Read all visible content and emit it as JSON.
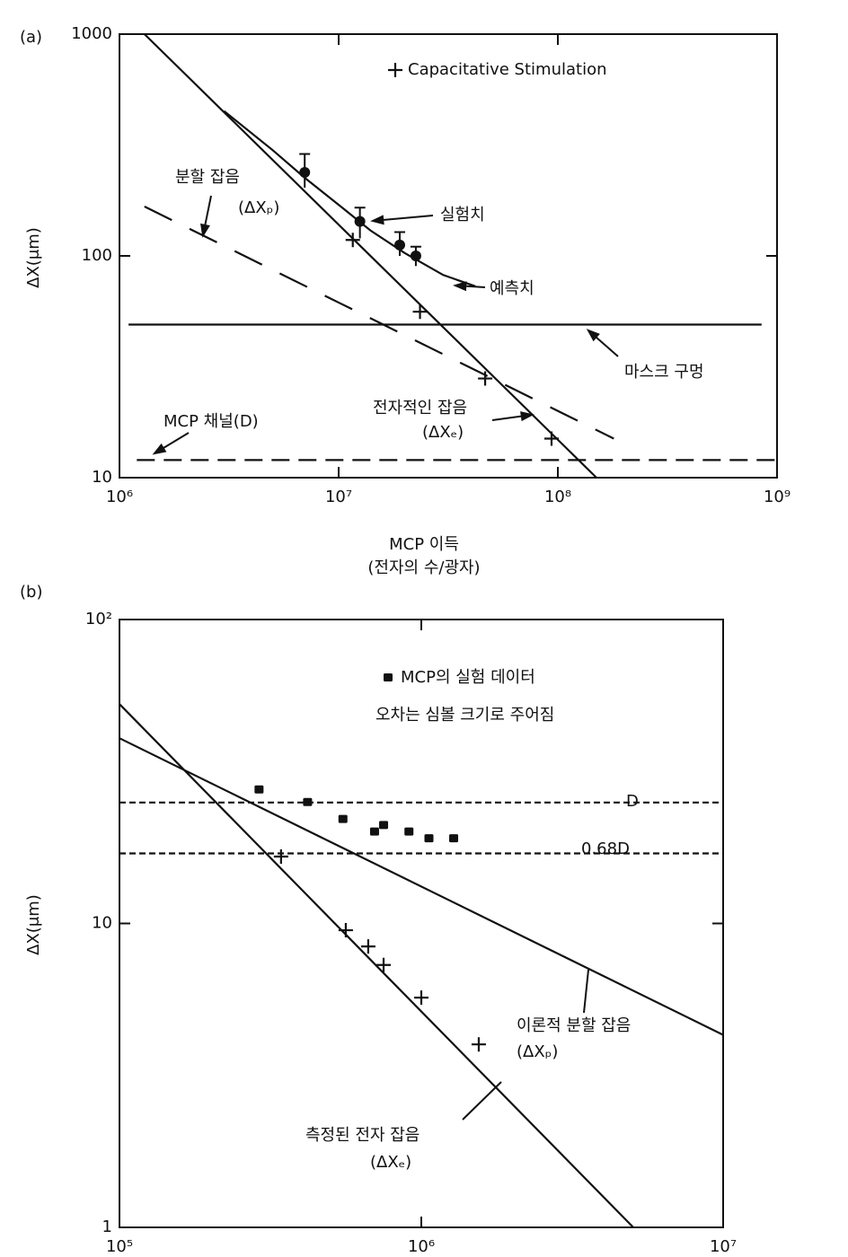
{
  "chart_data": [
    {
      "type": "line",
      "panel": "(a)",
      "xlabel": "MCP 이득",
      "xlabel2": "(전자의 수/광자)",
      "ylabel": "ΔX(μm)",
      "log_x": true,
      "log_y": true,
      "color": "#111",
      "xlim": [
        1000000,
        1000000000
      ],
      "xticks": [
        {
          "value": 1000000,
          "label": "10⁶"
        },
        {
          "value": 10000000,
          "label": "10⁷"
        },
        {
          "value": 100000000,
          "label": "10⁸"
        },
        {
          "value": 1000000000,
          "label": "10⁹"
        }
      ],
      "ylim": [
        10,
        1000
      ],
      "yticks": [
        10,
        100,
        1000
      ],
      "series": [
        {
          "style": "circle",
          "x": [
            7000000,
            12500000,
            19000000,
            22500000
          ],
          "values": [
            238,
            143,
            112,
            100
          ],
          "error_upper": [
            50,
            22,
            16,
            10
          ],
          "error_lower": [
            35,
            23,
            12,
            10
          ]
        },
        {
          "name": "Capacitative Stimulation",
          "style": "cross",
          "x": [
            11600000,
            23500000,
            46600000,
            93600000
          ],
          "values": [
            118,
            56,
            28,
            15
          ]
        },
        {
          "style": "solid",
          "x": [
            1300000,
            150000000
          ],
          "values": [
            1000,
            10
          ]
        },
        {
          "style": "solid",
          "x": [
            3000000,
            5000000,
            7000000,
            10000000,
            14000000,
            20000000,
            30000000,
            42000000
          ],
          "values": [
            450,
            300,
            225,
            170,
            130,
            103,
            82,
            73
          ]
        },
        {
          "style": "long-dashed",
          "x": [
            1300000,
            180000000
          ],
          "values": [
            167,
            15
          ]
        },
        {
          "style": "solid",
          "x": [
            1100000,
            850000000
          ],
          "values": [
            49,
            49
          ]
        },
        {
          "style": "dashed",
          "x": [
            1200000,
            1000000000
          ],
          "values": [
            12,
            12
          ]
        }
      ],
      "annotations": [
        "분할 잡음",
        "(ΔXₚ)",
        "실험치",
        "예측치",
        "마스크 구멍",
        "전자적인 잡음",
        "(ΔXₑ)",
        "MCP 채널(D)"
      ]
    },
    {
      "type": "line",
      "panel": "(b)",
      "ylabel": "ΔX(μm)",
      "log_x": true,
      "log_y": true,
      "color": "#111",
      "xlim": [
        100000,
        10000000
      ],
      "xticks": [
        {
          "value": 100000,
          "label": "10⁵"
        },
        {
          "value": 1000000,
          "label": "10⁶"
        },
        {
          "value": 10000000,
          "label": "10⁷"
        }
      ],
      "ylim": [
        1,
        100
      ],
      "yticks": [
        1,
        10,
        {
          "value": 100,
          "label": "10²"
        }
      ],
      "legend_note": "오차는 심볼 크기로 주어짐",
      "series": [
        {
          "name": "MCP의 실험 데이터",
          "style": "square",
          "x": [
            290000,
            420000,
            550000,
            700000,
            750000,
            910000,
            1060000,
            1280000
          ],
          "values": [
            27.5,
            25,
            22,
            20,
            21,
            20,
            19,
            19
          ]
        },
        {
          "style": "cross",
          "x": [
            343000,
            562000,
            667000,
            750000,
            1000000,
            1550000
          ],
          "values": [
            16.6,
            9.5,
            8.4,
            7.3,
            5.7,
            4
          ]
        },
        {
          "style": "solid",
          "x": [
            100000,
            5040000
          ],
          "values": [
            52.7,
            1
          ]
        },
        {
          "style": "solid",
          "x": [
            100000,
            10000000
          ],
          "values": [
            40.7,
            4.3
          ]
        },
        {
          "style": "short-dashed",
          "x": [
            100000,
            10000000
          ],
          "values": [
            25,
            25
          ]
        },
        {
          "style": "short-dashed",
          "x": [
            100000,
            10000000
          ],
          "values": [
            17,
            17
          ]
        }
      ],
      "annotations": [
        "D",
        "0.68D",
        "이론적 분할 잡음",
        "(ΔXₚ)",
        "측정된 전자 잡음",
        "(ΔXₑ)"
      ]
    }
  ]
}
